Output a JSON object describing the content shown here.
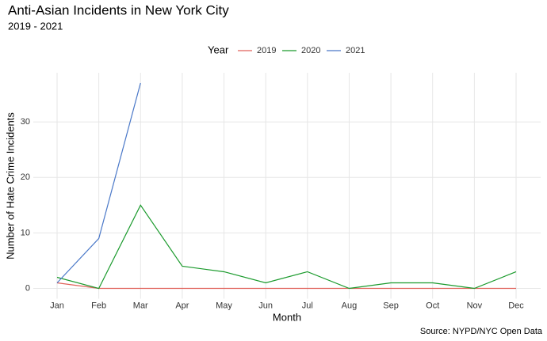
{
  "chart_data": {
    "type": "line",
    "title": "Anti-Asian Incidents in New York City",
    "subtitle": "2019 - 2021",
    "x_label": "Month",
    "y_label": "Number of Hate Crime Incidents",
    "caption": "Source: NYPD/NYC Open Data",
    "legend_title": "Year",
    "legend_position": "top",
    "grid": true,
    "categories": [
      "Jan",
      "Feb",
      "Mar",
      "Apr",
      "May",
      "Jun",
      "Jul",
      "Aug",
      "Sep",
      "Oct",
      "Nov",
      "Dec"
    ],
    "series": [
      {
        "name": "2019",
        "color": "#e0625a",
        "values": [
          1,
          0,
          0,
          0,
          0,
          0,
          0,
          0,
          0,
          0,
          0,
          0
        ]
      },
      {
        "name": "2020",
        "color": "#1a9a2c",
        "values": [
          2,
          0,
          15,
          4,
          3,
          1,
          3,
          0,
          1,
          1,
          0,
          3
        ]
      },
      {
        "name": "2021",
        "color": "#4a78c8",
        "values": [
          1,
          9,
          37,
          null,
          null,
          null,
          null,
          null,
          null,
          null,
          null,
          null
        ]
      }
    ],
    "ylim": [
      -1.85,
      38.85
    ],
    "yticks": [
      0,
      10,
      20,
      30
    ]
  }
}
